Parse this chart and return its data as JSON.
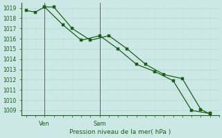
{
  "title": "Pression niveau de la mer( hPa )",
  "bg_color": "#cce8e4",
  "line_color": "#1a5c1a",
  "ylim": [
    1008.5,
    1019.5
  ],
  "yticks": [
    1009,
    1010,
    1011,
    1012,
    1013,
    1014,
    1015,
    1016,
    1017,
    1018,
    1019
  ],
  "xtick_labels": [
    "Ven",
    "Sam"
  ],
  "xtick_positions": [
    2,
    8
  ],
  "vline_x": [
    2,
    8
  ],
  "series1_x": [
    0,
    1,
    2,
    4,
    6,
    8,
    10,
    12,
    14,
    16,
    18,
    20
  ],
  "series1_y": [
    1018.75,
    1018.6,
    1019.1,
    1017.35,
    1015.85,
    1016.3,
    1015.0,
    1013.5,
    1012.8,
    1011.9,
    1009.0,
    1008.7
  ],
  "series2_x": [
    2,
    3,
    5,
    7,
    9,
    11,
    13,
    15,
    17,
    19,
    20
  ],
  "series2_y": [
    1019.1,
    1019.1,
    1017.0,
    1015.85,
    1016.3,
    1015.0,
    1013.5,
    1012.5,
    1012.1,
    1009.1,
    1008.65
  ],
  "xlim": [
    -0.5,
    21
  ],
  "major_grid_color": "#b8d8d4",
  "minor_grid_color": "#c8e4e0"
}
